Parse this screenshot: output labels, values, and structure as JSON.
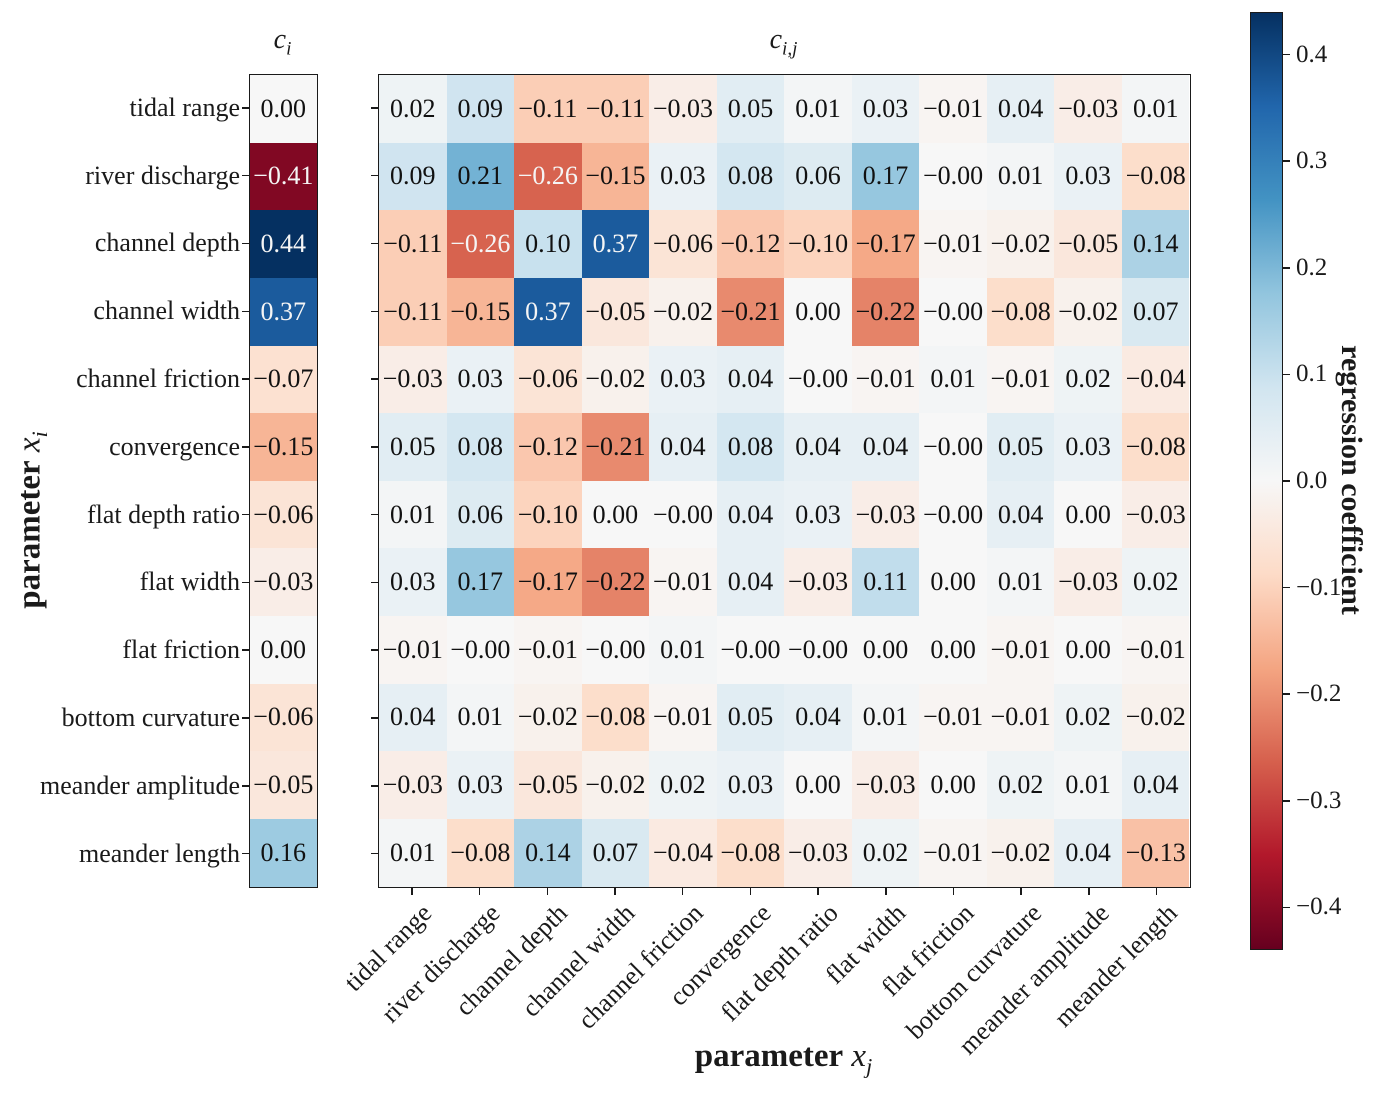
{
  "figure": {
    "background": "#ffffff",
    "axis_color": "#1a1a1a",
    "cell_text_dark": "#111111",
    "cell_text_light": "#f5f5f5"
  },
  "chart_data": {
    "type": "heatmap",
    "title_left": {
      "var": "c",
      "sub": "i"
    },
    "title_main": {
      "var": "c",
      "sub": "i,j"
    },
    "xlabel": {
      "text": "parameter",
      "var": "x",
      "sub": "j"
    },
    "ylabel": {
      "text": "parameter",
      "var": "x",
      "sub": "i"
    },
    "parameters": [
      "tidal range",
      "river discharge",
      "channel depth",
      "channel width",
      "channel friction",
      "convergence",
      "flat depth ratio",
      "flat width",
      "flat friction",
      "bottom curvature",
      "meander amplitude",
      "meander length"
    ],
    "ci_values": [
      "0.00",
      "-0.41",
      "0.44",
      "0.37",
      "-0.07",
      "-0.15",
      "-0.06",
      "-0.03",
      "0.00",
      "-0.06",
      "-0.05",
      "0.16"
    ],
    "cij_matrix": [
      [
        "0.02",
        "0.09",
        "-0.11",
        "-0.11",
        "-0.03",
        "0.05",
        "0.01",
        "0.03",
        "-0.01",
        "0.04",
        "-0.03",
        "0.01"
      ],
      [
        "0.09",
        "0.21",
        "-0.26",
        "-0.15",
        "0.03",
        "0.08",
        "0.06",
        "0.17",
        "-0.00",
        "0.01",
        "0.03",
        "-0.08"
      ],
      [
        "-0.11",
        "-0.26",
        "0.10",
        "0.37",
        "-0.06",
        "-0.12",
        "-0.10",
        "-0.17",
        "-0.01",
        "-0.02",
        "-0.05",
        "0.14"
      ],
      [
        "-0.11",
        "-0.15",
        "0.37",
        "-0.05",
        "-0.02",
        "-0.21",
        "0.00",
        "-0.22",
        "-0.00",
        "-0.08",
        "-0.02",
        "0.07"
      ],
      [
        "-0.03",
        "0.03",
        "-0.06",
        "-0.02",
        "0.03",
        "0.04",
        "-0.00",
        "-0.01",
        "0.01",
        "-0.01",
        "0.02",
        "-0.04"
      ],
      [
        "0.05",
        "0.08",
        "-0.12",
        "-0.21",
        "0.04",
        "0.08",
        "0.04",
        "0.04",
        "-0.00",
        "0.05",
        "0.03",
        "-0.08"
      ],
      [
        "0.01",
        "0.06",
        "-0.10",
        "0.00",
        "-0.00",
        "0.04",
        "0.03",
        "-0.03",
        "-0.00",
        "0.04",
        "0.00",
        "-0.03"
      ],
      [
        "0.03",
        "0.17",
        "-0.17",
        "-0.22",
        "-0.01",
        "0.04",
        "-0.03",
        "0.11",
        "0.00",
        "0.01",
        "-0.03",
        "0.02"
      ],
      [
        "-0.01",
        "-0.00",
        "-0.01",
        "-0.00",
        "0.01",
        "-0.00",
        "-0.00",
        "0.00",
        "0.00",
        "-0.01",
        "0.00",
        "-0.01"
      ],
      [
        "0.04",
        "0.01",
        "-0.02",
        "-0.08",
        "-0.01",
        "0.05",
        "0.04",
        "0.01",
        "-0.01",
        "-0.01",
        "0.02",
        "-0.02"
      ],
      [
        "-0.03",
        "0.03",
        "-0.05",
        "-0.02",
        "0.02",
        "0.03",
        "0.00",
        "-0.03",
        "0.00",
        "0.02",
        "0.01",
        "0.04"
      ],
      [
        "0.01",
        "-0.08",
        "0.14",
        "0.07",
        "-0.04",
        "-0.08",
        "-0.03",
        "0.02",
        "-0.01",
        "-0.02",
        "0.04",
        "-0.13"
      ]
    ],
    "colorbar": {
      "label": "regression coefficient",
      "ticks": [
        "0.4",
        "0.3",
        "0.2",
        "0.1",
        "0.0",
        "-0.1",
        "-0.2",
        "-0.3",
        "-0.4"
      ],
      "vmin": -0.44,
      "vmax": 0.44
    },
    "colormap": {
      "name": "RdBu",
      "anchors": [
        "#67001f",
        "#b2182b",
        "#d6604d",
        "#f4a582",
        "#fddbc7",
        "#f7f7f7",
        "#d1e5f0",
        "#92c5de",
        "#4393c3",
        "#2166ac",
        "#053061"
      ]
    },
    "white_text_threshold": 0.25
  }
}
